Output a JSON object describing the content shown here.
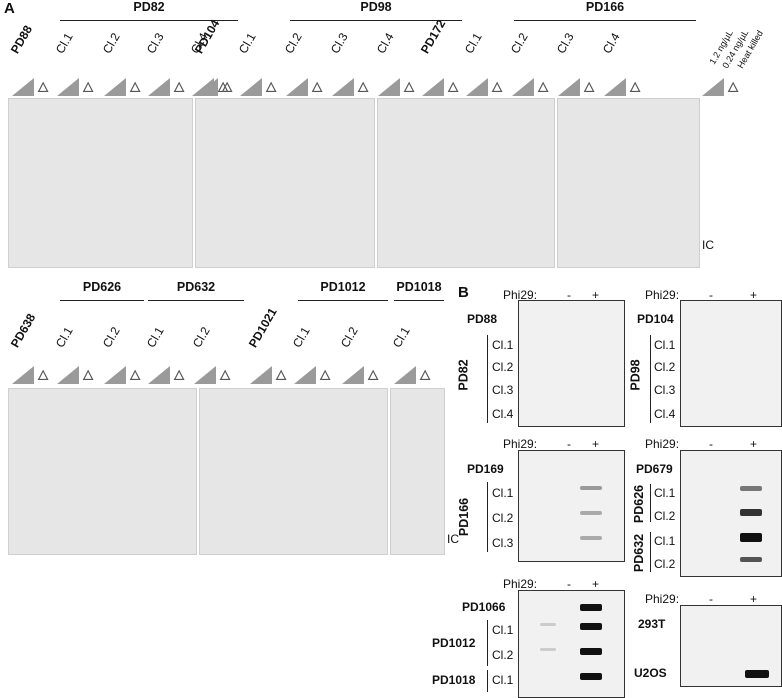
{
  "panels": {
    "a": "A",
    "b": "B"
  },
  "panel_a_top": {
    "groups": [
      "PD82",
      "PD98",
      "PD166"
    ],
    "samples": [
      "PD88",
      "Cl.1",
      "Cl.2",
      "Cl.3",
      "Cl.4",
      "PD104",
      "Cl.1",
      "Cl.2",
      "Cl.3",
      "Cl.4",
      "PD172",
      "Cl.1",
      "Cl.2",
      "Cl.3",
      "Cl.4"
    ],
    "key": [
      "1.2 ng/µL",
      "0.24 ng/µL",
      "Heat killed"
    ],
    "ic": "IC"
  },
  "panel_a_bottom": {
    "groups": [
      "PD626",
      "PD632",
      "PD1012",
      "PD1018"
    ],
    "samples": [
      "PD638",
      "Cl.1",
      "Cl.2",
      "Cl.1",
      "Cl.2",
      "PD1021",
      "Cl.1",
      "Cl.2",
      "Cl.1"
    ],
    "ic": "IC"
  },
  "panel_b": {
    "phi_label": "Phi29:",
    "minus": "-",
    "plus": "+",
    "blot1": {
      "top": "PD88",
      "group": "PD82",
      "clones": [
        "Cl.1",
        "Cl.2",
        "Cl.3",
        "Cl.4"
      ]
    },
    "blot2": {
      "top": "PD104",
      "group": "PD98",
      "clones": [
        "Cl.1",
        "Cl.2",
        "Cl.3",
        "Cl.4"
      ]
    },
    "blot3": {
      "top": "PD169",
      "group": "PD166",
      "clones": [
        "Cl.1",
        "Cl.2",
        "Cl.3"
      ]
    },
    "blot4": {
      "top": "PD679",
      "group1": "PD626",
      "group2": "PD632",
      "clones1": [
        "Cl.1",
        "Cl.2"
      ],
      "clones2": [
        "Cl.1",
        "Cl.2"
      ]
    },
    "blot5": {
      "top": "PD1066",
      "group1": "PD1012",
      "group2": "PD1018",
      "clones1": [
        "Cl.1",
        "Cl.2"
      ],
      "clones2": [
        "Cl.1"
      ]
    },
    "blot6": {
      "row1": "293T",
      "row2": "U2OS"
    }
  }
}
